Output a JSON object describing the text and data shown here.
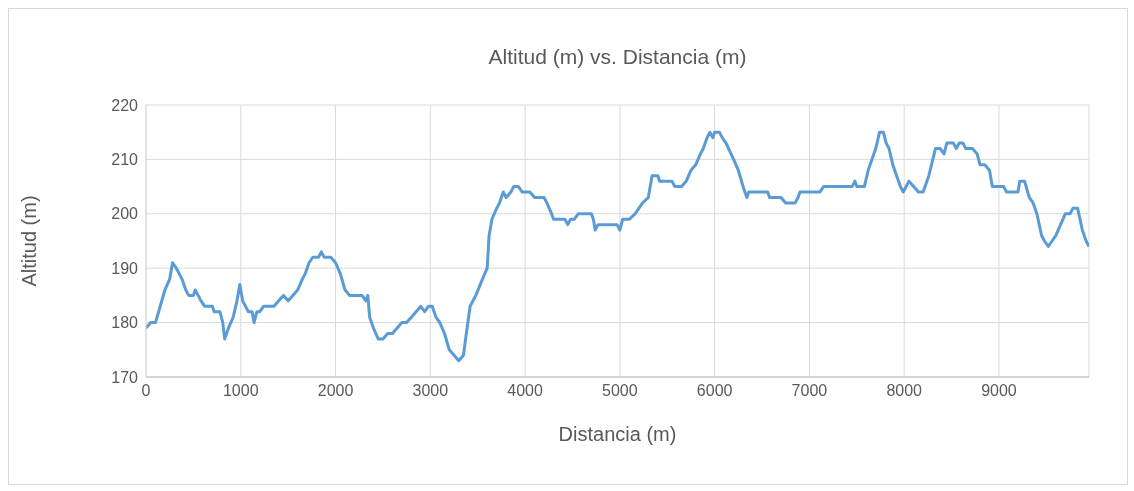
{
  "chart_data": {
    "type": "line",
    "title": "Altitud (m) vs. Distancia (m)",
    "xlabel": "Distancia (m)",
    "ylabel": "Altitud (m)",
    "x": [
      0,
      50,
      100,
      150,
      200,
      250,
      280,
      320,
      380,
      420,
      450,
      500,
      520,
      550,
      580,
      620,
      700,
      720,
      780,
      810,
      830,
      870,
      920,
      960,
      990,
      1020,
      1080,
      1120,
      1140,
      1170,
      1200,
      1240,
      1350,
      1400,
      1450,
      1500,
      1550,
      1600,
      1650,
      1680,
      1720,
      1760,
      1820,
      1850,
      1880,
      1950,
      2000,
      2050,
      2100,
      2150,
      2280,
      2320,
      2340,
      2360,
      2400,
      2450,
      2500,
      2550,
      2600,
      2650,
      2700,
      2750,
      2800,
      2850,
      2900,
      2940,
      2980,
      3020,
      3060,
      3100,
      3150,
      3200,
      3250,
      3300,
      3350,
      3380,
      3420,
      3480,
      3550,
      3600,
      3620,
      3650,
      3700,
      3730,
      3770,
      3800,
      3850,
      3880,
      3930,
      3970,
      4050,
      4100,
      4200,
      4230,
      4280,
      4300,
      4420,
      4450,
      4480,
      4520,
      4560,
      4700,
      4720,
      4740,
      4770,
      4970,
      5000,
      5030,
      5100,
      5160,
      5200,
      5240,
      5300,
      5340,
      5400,
      5420,
      5550,
      5580,
      5650,
      5700,
      5750,
      5800,
      5850,
      5880,
      5920,
      5950,
      5980,
      6000,
      6050,
      6080,
      6120,
      6200,
      6250,
      6300,
      6340,
      6360,
      6500,
      6560,
      6580,
      6700,
      6750,
      6850,
      6880,
      6900,
      7110,
      7150,
      7450,
      7480,
      7500,
      7580,
      7620,
      7700,
      7740,
      7780,
      7810,
      7840,
      7880,
      7920,
      7960,
      7990,
      8050,
      8100,
      8150,
      8200,
      8260,
      8330,
      8380,
      8420,
      8450,
      8520,
      8550,
      8580,
      8620,
      8650,
      8720,
      8770,
      8800,
      8850,
      8900,
      8930,
      9050,
      9080,
      9200,
      9220,
      9270,
      9320,
      9360,
      9400,
      9450,
      9480,
      9520,
      9560,
      9600,
      9650,
      9700,
      9750,
      9780,
      9830,
      9880,
      9920,
      9950
    ],
    "series": [
      {
        "color": "#5b9bd5",
        "values": [
          179,
          180,
          180,
          183,
          186,
          188,
          191,
          190,
          188,
          186,
          185,
          185,
          186,
          185,
          184,
          183,
          183,
          182,
          182,
          180,
          177,
          179,
          181,
          184,
          187,
          184,
          182,
          182,
          180,
          182,
          182,
          183,
          183,
          184,
          185,
          184,
          185,
          186,
          188,
          189,
          191,
          192,
          192,
          193,
          192,
          192,
          191,
          189,
          186,
          185,
          185,
          184,
          185,
          181,
          179,
          177,
          177,
          178,
          178,
          179,
          180,
          180,
          181,
          182,
          183,
          182,
          183,
          183,
          181,
          180,
          178,
          175,
          174,
          173,
          174,
          178,
          183,
          185,
          188,
          190,
          196,
          199,
          201,
          202,
          204,
          203,
          204,
          205,
          205,
          204,
          204,
          203,
          203,
          202,
          200,
          199,
          199,
          198,
          199,
          199,
          200,
          200,
          199,
          197,
          198,
          198,
          197,
          199,
          199,
          200,
          201,
          202,
          203,
          207,
          207,
          206,
          206,
          205,
          205,
          206,
          208,
          209,
          211,
          212,
          214,
          215,
          214,
          215,
          215,
          214,
          213,
          210,
          208,
          205,
          203,
          204,
          204,
          204,
          203,
          203,
          202,
          202,
          203,
          204,
          204,
          205,
          205,
          206,
          205,
          205,
          208,
          212,
          215,
          215,
          213,
          212,
          209,
          207,
          205,
          204,
          206,
          205,
          204,
          204,
          207,
          212,
          212,
          211,
          213,
          213,
          212,
          213,
          213,
          212,
          212,
          211,
          209,
          209,
          208,
          205,
          205,
          204,
          204,
          206,
          206,
          203,
          202,
          200,
          196,
          195,
          194,
          195,
          196,
          198,
          200,
          200,
          201,
          201,
          197,
          195,
          194
        ]
      }
    ],
    "xlim": [
      0,
      9950
    ],
    "xticks": [
      0,
      1000,
      2000,
      3000,
      4000,
      5000,
      6000,
      7000,
      8000,
      9000
    ],
    "ylim": [
      170,
      220
    ],
    "yticks": [
      170,
      180,
      190,
      200,
      210,
      220
    ],
    "grid": true,
    "legend": false,
    "marker": "none",
    "line_style": "solid"
  }
}
